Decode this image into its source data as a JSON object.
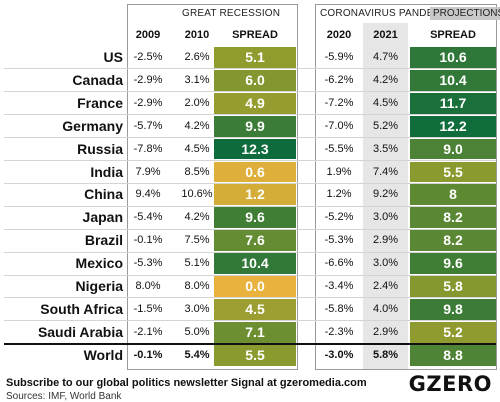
{
  "chart_data": {
    "type": "table",
    "panels": [
      {
        "title": "GREAT RECESSION",
        "columns": [
          "2009",
          "2010",
          "SPREAD"
        ]
      },
      {
        "title": "CORONAVIRUS PANDEMIC",
        "badge": "PROJECTIONS",
        "columns": [
          "2020",
          "2021",
          "SPREAD"
        ]
      }
    ],
    "rows": [
      {
        "country": "US",
        "y2009": "-2.5%",
        "y2010": "2.6%",
        "spread1": "5.1",
        "y2020": "-5.9%",
        "y2021": "4.7%",
        "spread2": "10.6"
      },
      {
        "country": "Canada",
        "y2009": "-2.9%",
        "y2010": "3.1%",
        "spread1": "6.0",
        "y2020": "-6.2%",
        "y2021": "4.2%",
        "spread2": "10.4"
      },
      {
        "country": "France",
        "y2009": "-2.9%",
        "y2010": "2.0%",
        "spread1": "4.9",
        "y2020": "-7.2%",
        "y2021": "4.5%",
        "spread2": "11.7"
      },
      {
        "country": "Germany",
        "y2009": "-5.7%",
        "y2010": "4.2%",
        "spread1": "9.9",
        "y2020": "-7.0%",
        "y2021": "5.2%",
        "spread2": "12.2"
      },
      {
        "country": "Russia",
        "y2009": "-7.8%",
        "y2010": "4.5%",
        "spread1": "12.3",
        "y2020": "-5.5%",
        "y2021": "3.5%",
        "spread2": "9.0"
      },
      {
        "country": "India",
        "y2009": "7.9%",
        "y2010": "8.5%",
        "spread1": "0.6",
        "y2020": "1.9%",
        "y2021": "7.4%",
        "spread2": "5.5"
      },
      {
        "country": "China",
        "y2009": "9.4%",
        "y2010": "10.6%",
        "spread1": "1.2",
        "y2020": "1.2%",
        "y2021": "9.2%",
        "spread2": "8"
      },
      {
        "country": "Japan",
        "y2009": "-5.4%",
        "y2010": "4.2%",
        "spread1": "9.6",
        "y2020": "-5.2%",
        "y2021": "3.0%",
        "spread2": "8.2"
      },
      {
        "country": "Brazil",
        "y2009": "-0.1%",
        "y2010": "7.5%",
        "spread1": "7.6",
        "y2020": "-5.3%",
        "y2021": "2.9%",
        "spread2": "8.2"
      },
      {
        "country": "Mexico",
        "y2009": "-5.3%",
        "y2010": "5.1%",
        "spread1": "10.4",
        "y2020": "-6.6%",
        "y2021": "3.0%",
        "spread2": "9.6"
      },
      {
        "country": "Nigeria",
        "y2009": "8.0%",
        "y2010": "8.0%",
        "spread1": "0.0",
        "y2020": "-3.4%",
        "y2021": "2.4%",
        "spread2": "5.8"
      },
      {
        "country": "South Africa",
        "y2009": "-1.5%",
        "y2010": "3.0%",
        "spread1": "4.5",
        "y2020": "-5.8%",
        "y2021": "4.0%",
        "spread2": "9.8"
      },
      {
        "country": "Saudi Arabia",
        "y2009": "-2.1%",
        "y2010": "5.0%",
        "spread1": "7.1",
        "y2020": "-2.3%",
        "y2021": "2.9%",
        "spread2": "5.2"
      },
      {
        "country": "World",
        "y2009": "-0.1%",
        "y2010": "5.4%",
        "spread1": "5.5",
        "y2020": "-3.0%",
        "y2021": "5.8%",
        "spread2": "8.8",
        "bold": true
      }
    ],
    "color_scale": {
      "low": "#e8b23c",
      "mid": "#8a9a2e",
      "high": "#0f6b3c"
    }
  },
  "footer": {
    "subscribe": "Subscribe to our global politics newsletter Signal at gzeromedia.com",
    "sources": "Sources: IMF, World Bank",
    "logo": "GZERO"
  }
}
